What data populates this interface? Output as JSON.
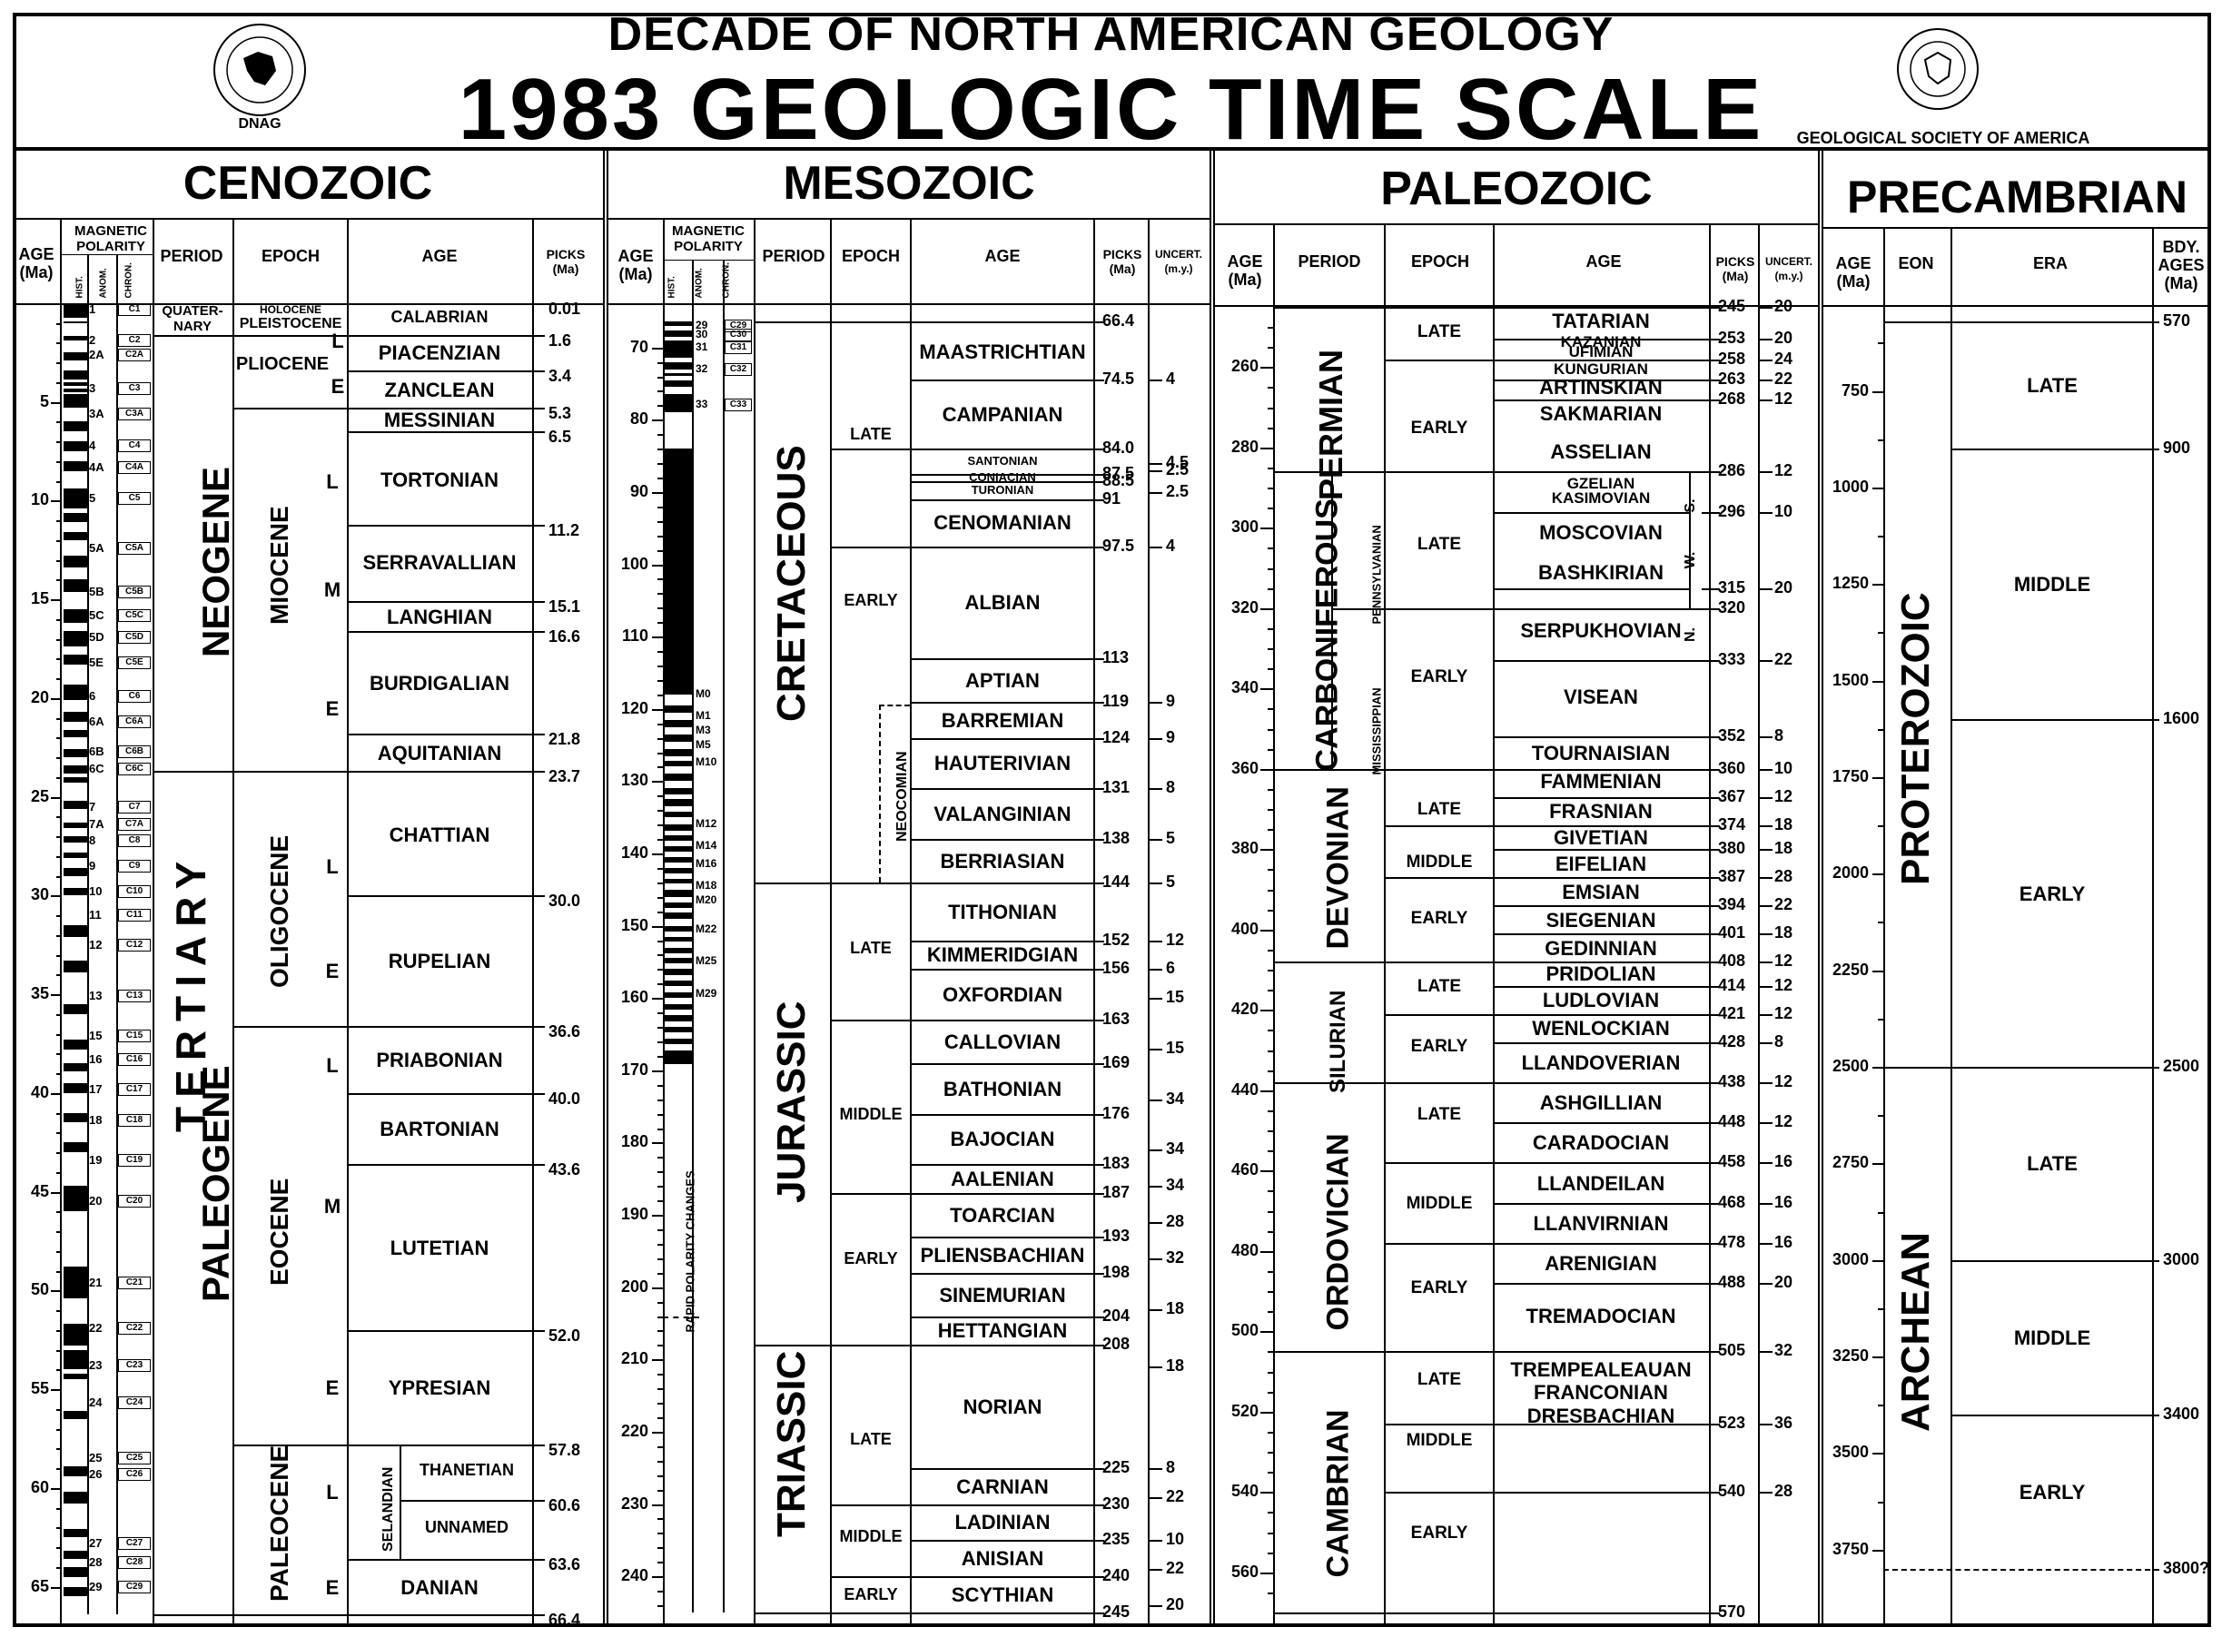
{
  "header": {
    "title_line1": "DECADE OF NORTH AMERICAN GEOLOGY",
    "title_line2": "1983 GEOLOGIC TIME SCALE",
    "dnag_logo_label": "DNAG",
    "gsa_label": "GEOLOGICAL SOCIETY OF AMERICA"
  },
  "cenozoic": {
    "title": "CENOZOIC",
    "col_age": "AGE\n(Ma)",
    "col_mag": "MAGNETIC\nPOLARITY",
    "col_period": "PERIOD",
    "col_epoch": "EPOCH",
    "col_stage": "AGE",
    "col_picks": "PICKS\n(Ma)",
    "hist": "HIST.",
    "anom": "ANOM.",
    "chron": "CHRON.",
    "tertiary": "TERTIARY",
    "quaternary": "QUATER-\nNARY",
    "neogene": "NEOGENE",
    "paleogene": "PALEOGENE",
    "holocene": "HOLOCENE",
    "pleistocene": "PLEISTOCENE",
    "pliocene": "PLIOCENE",
    "miocene": "MIOCENE",
    "oligocene": "OLIGOCENE",
    "eocene": "EOCENE",
    "paleocene": "PALEOCENE",
    "selandian": "SELANDIAN",
    "ticks": [
      "5",
      "10",
      "15",
      "20",
      "25",
      "30",
      "35",
      "40",
      "45",
      "50",
      "55",
      "60",
      "65"
    ],
    "stages": [
      "CALABRIAN",
      "PIACENZIAN",
      "ZANCLEAN",
      "MESSINIAN",
      "TORTONIAN",
      "SERRAVALLIAN",
      "LANGHIAN",
      "BURDIGALIAN",
      "AQUITANIAN",
      "CHATTIAN",
      "RUPELIAN",
      "PRIABONIAN",
      "BARTONIAN",
      "LUTETIAN",
      "YPRESIAN",
      "THANETIAN",
      "UNNAMED",
      "DANIAN"
    ],
    "subepochs": [
      "L",
      "E",
      "L",
      "M",
      "E",
      "L",
      "E",
      "L",
      "M",
      "E",
      "L",
      "E"
    ],
    "picks": [
      "0.01",
      "1.6",
      "3.4",
      "5.3",
      "6.5",
      "11.2",
      "15.1",
      "16.6",
      "21.8",
      "23.7",
      "30.0",
      "36.6",
      "40.0",
      "43.6",
      "52.0",
      "57.8",
      "60.6",
      "63.6",
      "66.4"
    ],
    "anomalies": [
      "1",
      "2",
      "2A",
      "3",
      "3A",
      "4",
      "4A",
      "5",
      "5A",
      "5B",
      "5C",
      "5D",
      "5E",
      "6",
      "6A",
      "6B",
      "6C",
      "7",
      "7A",
      "8",
      "9",
      "10",
      "11",
      "12",
      "13",
      "15",
      "16",
      "17",
      "18",
      "19",
      "20",
      "21",
      "22",
      "23",
      "24",
      "25",
      "26",
      "27",
      "28",
      "29"
    ],
    "chrons": [
      "C1",
      "C2",
      "C2A",
      "C3",
      "C3A",
      "C4",
      "C4A",
      "C5",
      "C5A",
      "C5B",
      "C5C",
      "C5D",
      "C5E",
      "C6",
      "C6A",
      "C6B",
      "C6C",
      "C7",
      "C7A",
      "C8",
      "C9",
      "C10",
      "C11",
      "C12",
      "C13",
      "C15",
      "C16",
      "C17",
      "C18",
      "C19",
      "C20",
      "C21",
      "C22",
      "C23",
      "C24",
      "C25",
      "C26",
      "C27",
      "C28",
      "C29"
    ]
  },
  "mesozoic": {
    "title": "MESOZOIC",
    "col_age": "AGE\n(Ma)",
    "col_mag": "MAGNETIC\nPOLARITY",
    "col_period": "PERIOD",
    "col_epoch": "EPOCH",
    "col_stage": "AGE",
    "col_picks": "PICKS\n(Ma)",
    "col_uncert": "UNCERT.\n(m.y.)",
    "hist": "HIST.",
    "anom": "ANOM.",
    "chron": "CHRON.",
    "rapid": "RAPID POLARITY CHANGES",
    "cretaceous": "CRETACEOUS",
    "jurassic": "JURASSIC",
    "triassic": "TRIASSIC",
    "neocomian": "NEOCOMIAN",
    "ticks": [
      "70",
      "80",
      "90",
      "100",
      "110",
      "120",
      "130",
      "140",
      "150",
      "160",
      "170",
      "180",
      "190",
      "200",
      "210",
      "220",
      "230",
      "240"
    ],
    "epochs": [
      "LATE",
      "EARLY",
      "LATE",
      "MIDDLE",
      "EARLY",
      "LATE",
      "MIDDLE",
      "EARLY"
    ],
    "stages": [
      "MAASTRICHTIAN",
      "CAMPANIAN",
      "SANTONIAN",
      "CONIACIAN",
      "TURONIAN",
      "CENOMANIAN",
      "ALBIAN",
      "APTIAN",
      "BARREMIAN",
      "HAUTERIVIAN",
      "VALANGINIAN",
      "BERRIASIAN",
      "TITHONIAN",
      "KIMMERIDGIAN",
      "OXFORDIAN",
      "CALLOVIAN",
      "BATHONIAN",
      "BAJOCIAN",
      "AALENIAN",
      "TOARCIAN",
      "PLIENSBACHIAN",
      "SINEMURIAN",
      "HETTANGIAN",
      "NORIAN",
      "CARNIAN",
      "LADINIAN",
      "ANISIAN",
      "SCYTHIAN"
    ],
    "picks": [
      "66.4",
      "74.5",
      "84.0",
      "87.5",
      "88.5",
      "91",
      "97.5",
      "113",
      "119",
      "124",
      "131",
      "138",
      "144",
      "152",
      "156",
      "163",
      "169",
      "176",
      "183",
      "187",
      "193",
      "198",
      "204",
      "208",
      "225",
      "230",
      "235",
      "240",
      "245"
    ],
    "uncert": [
      "4",
      "4.5",
      "2.5",
      "2.5",
      "4",
      "9",
      "9",
      "8",
      "5",
      "5",
      "12",
      "6",
      "15",
      "15",
      "34",
      "34",
      "34",
      "28",
      "32",
      "18",
      "18",
      "8",
      "22",
      "10",
      "22",
      "20"
    ],
    "anomalies": [
      "29",
      "30",
      "31",
      "32",
      "33",
      "M0",
      "M1",
      "M3",
      "M5",
      "M10",
      "M12",
      "M14",
      "M16",
      "M18",
      "M20",
      "M22",
      "M25",
      "M29"
    ],
    "chrons": [
      "C29",
      "C30",
      "C31",
      "C32",
      "C33"
    ]
  },
  "paleozoic": {
    "title": "PALEOZOIC",
    "col_age": "AGE\n(Ma)",
    "col_period": "PERIOD",
    "col_epoch": "EPOCH",
    "col_stage": "AGE",
    "col_picks": "PICKS\n(Ma)",
    "col_uncert": "UNCERT.\n(m.y.)",
    "permian": "PERMIAN",
    "carboniferous": "CARBONIFEROUS",
    "pennsylvanian": "PENNSYLVANIAN",
    "mississippian": "MISSISSIPPIAN",
    "devonian": "DEVONIAN",
    "silurian": "SILURIAN",
    "ordovician": "ORDOVICIAN",
    "cambrian": "CAMBRIAN",
    "sub_s": "S.",
    "sub_w": "W.",
    "sub_n": "N.",
    "ticks": [
      "260",
      "280",
      "300",
      "320",
      "340",
      "360",
      "380",
      "400",
      "420",
      "440",
      "460",
      "480",
      "500",
      "520",
      "540",
      "560"
    ],
    "epochs": [
      "LATE",
      "EARLY",
      "LATE",
      "EARLY",
      "LATE",
      "MIDDLE",
      "EARLY",
      "LATE",
      "EARLY",
      "LATE",
      "MIDDLE",
      "EARLY",
      "LATE",
      "MIDDLE",
      "EARLY"
    ],
    "stages": [
      "TATARIAN",
      "KAZANIAN",
      "UFIMIAN",
      "KUNGURIAN",
      "ARTINSKIAN",
      "SAKMARIAN",
      "ASSELIAN",
      "GZELIAN",
      "KASIMOVIAN",
      "MOSCOVIAN",
      "BASHKIRIAN",
      "SERPUKHOVIAN",
      "VISEAN",
      "TOURNAISIAN",
      "FAMMENIAN",
      "FRASNIAN",
      "GIVETIAN",
      "EIFELIAN",
      "EMSIAN",
      "SIEGENIAN",
      "GEDINNIAN",
      "PRIDOLIAN",
      "LUDLOVIAN",
      "WENLOCKIAN",
      "LLANDOVERIAN",
      "ASHGILLIAN",
      "CARADOCIAN",
      "LLANDEILAN",
      "LLANVIRNIAN",
      "ARENIGIAN",
      "TREMADOCIAN",
      "TREMPEALEAUAN",
      "FRANCONIAN",
      "DRESBACHIAN"
    ],
    "picks": [
      "245",
      "253",
      "258",
      "263",
      "268",
      "286",
      "296",
      "315",
      "320",
      "333",
      "352",
      "360",
      "367",
      "374",
      "380",
      "387",
      "394",
      "401",
      "408",
      "414",
      "421",
      "428",
      "438",
      "448",
      "458",
      "468",
      "478",
      "488",
      "505",
      "523",
      "540",
      "570"
    ],
    "uncert": [
      "20",
      "20",
      "24",
      "22",
      "12",
      "12",
      "10",
      "20",
      "22",
      "8",
      "10",
      "12",
      "18",
      "18",
      "28",
      "22",
      "18",
      "12",
      "12",
      "12",
      "8",
      "12",
      "12",
      "16",
      "16",
      "16",
      "20",
      "32",
      "36",
      "28"
    ]
  },
  "precambrian": {
    "title": "PRECAMBRIAN",
    "col_age": "AGE\n(Ma)",
    "col_eon": "EON",
    "col_era": "ERA",
    "col_bdy": "BDY.\nAGES\n(Ma)",
    "proterozoic": "PROTEROZOIC",
    "archean": "ARCHEAN",
    "ticks": [
      "750",
      "1000",
      "1250",
      "1500",
      "1750",
      "2000",
      "2250",
      "2500",
      "2750",
      "3000",
      "3250",
      "3500",
      "3750"
    ],
    "eras": [
      "LATE",
      "MIDDLE",
      "EARLY",
      "LATE",
      "MIDDLE",
      "EARLY"
    ],
    "bdy": [
      "570",
      "900",
      "1600",
      "2500",
      "3000",
      "3400",
      "3800?"
    ]
  }
}
